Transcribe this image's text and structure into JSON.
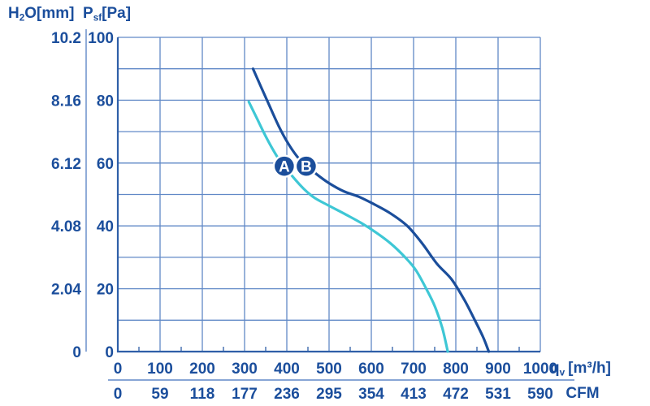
{
  "chart_data": {
    "type": "line",
    "title": "",
    "x": {
      "label_base": "q",
      "label_sub": "v",
      "label_unit": "[m³/h]",
      "min": 0,
      "max": 1000,
      "major_ticks": [
        0,
        100,
        200,
        300,
        400,
        500,
        600,
        700,
        800,
        900,
        1000
      ],
      "minor_tick_step": 50
    },
    "x2": {
      "label": "CFM",
      "ticks": [
        0,
        59,
        118,
        177,
        236,
        295,
        354,
        413,
        472,
        531,
        590
      ]
    },
    "y": {
      "label_base": "P",
      "label_sub": "sf",
      "label_unit": "[Pa]",
      "min": 0,
      "max": 100,
      "grid_step": 10,
      "labeled_ticks": [
        100,
        80,
        60,
        40,
        20,
        0
      ]
    },
    "y2": {
      "label_base": "H",
      "label_sub": "2",
      "label_unit": "O[mm]",
      "ticks": [
        10.2,
        8.16,
        6.12,
        4.08,
        2.04,
        0
      ]
    },
    "series": [
      {
        "name": "A",
        "color": "#3EC7D5",
        "points": [
          [
            310,
            79.5
          ],
          [
            330,
            74
          ],
          [
            352,
            68
          ],
          [
            375,
            62.5
          ],
          [
            394,
            59
          ],
          [
            415,
            55.5
          ],
          [
            440,
            51.8
          ],
          [
            465,
            49
          ],
          [
            500,
            46.4
          ],
          [
            540,
            43.6
          ],
          [
            575,
            41
          ],
          [
            610,
            38
          ],
          [
            645,
            34.5
          ],
          [
            680,
            30
          ],
          [
            705,
            26
          ],
          [
            730,
            20
          ],
          [
            750,
            14.5
          ],
          [
            768,
            7.5
          ],
          [
            781,
            0
          ]
        ]
      },
      {
        "name": "B",
        "color": "#1B4E9B",
        "points": [
          [
            320,
            90
          ],
          [
            338,
            84.5
          ],
          [
            358,
            78.5
          ],
          [
            380,
            72
          ],
          [
            402,
            66.5
          ],
          [
            425,
            62
          ],
          [
            446,
            59.2
          ],
          [
            470,
            56.5
          ],
          [
            500,
            53.6
          ],
          [
            535,
            51
          ],
          [
            570,
            49.3
          ],
          [
            605,
            47
          ],
          [
            645,
            44
          ],
          [
            685,
            40
          ],
          [
            720,
            34.5
          ],
          [
            755,
            28
          ],
          [
            790,
            23
          ],
          [
            820,
            16.5
          ],
          [
            845,
            10
          ],
          [
            865,
            4.5
          ],
          [
            878,
            0
          ]
        ]
      }
    ],
    "markers": [
      {
        "label": "A",
        "x": 394,
        "y": 59
      },
      {
        "label": "B",
        "x": 446,
        "y": 59
      }
    ],
    "colors": {
      "grid": "#6189C7",
      "frame": "#2F5FA8",
      "text": "#1B4E9C",
      "marker_fill": "#1B4E9B",
      "marker_text": "#FFFFFF"
    },
    "legend_position": "none",
    "grid": true
  }
}
